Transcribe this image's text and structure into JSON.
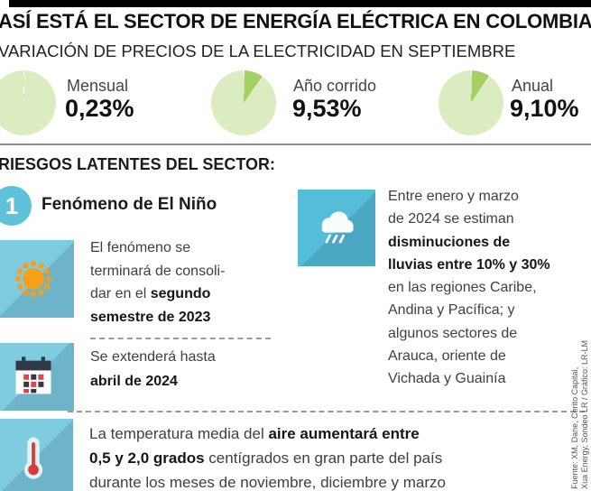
{
  "header": {
    "title": "ASÍ ESTÁ EL SECTOR DE ENERGÍA ELÉCTRICA EN COLOMBIA",
    "subtitle": "VARIACIÓN DE PRECIOS DE LA ELECTRICIDAD EN SEPTIEMBRE"
  },
  "chart_data": {
    "type": "pie",
    "title": "Variación de precios de la electricidad en septiembre",
    "unit": "%",
    "items": [
      {
        "label": "Mensual",
        "value": 0.23,
        "display": "0,23%"
      },
      {
        "label": "Año corrido",
        "value": 9.53,
        "display": "9,53%"
      },
      {
        "label": "Anual",
        "value": 9.1,
        "display": "9,10%"
      }
    ],
    "colors": {
      "slice": "#a7d064",
      "remainder": "#dcecc1"
    }
  },
  "risks": {
    "heading": "RIESGOS LATENTES DEL SECTOR:",
    "number": "1",
    "title": "Fenómeno de El Niño",
    "sun": {
      "lines": [
        {
          "pre": "El fenómeno se",
          "bold": "",
          "post": ""
        },
        {
          "pre": "terminará de consoli-",
          "bold": "",
          "post": ""
        },
        {
          "pre": "dar en el ",
          "bold": "segundo",
          "post": ""
        },
        {
          "pre": "",
          "bold": "semestre de 2023",
          "post": ""
        }
      ]
    },
    "calendar": {
      "lines": [
        {
          "pre": "Se extenderá hasta",
          "bold": "",
          "post": ""
        },
        {
          "pre": "",
          "bold": "abril de 2024",
          "post": ""
        }
      ]
    },
    "rain": {
      "lines": [
        {
          "pre": "Entre enero y marzo",
          "bold": "",
          "post": ""
        },
        {
          "pre": "de 2024 se estiman",
          "bold": "",
          "post": ""
        },
        {
          "pre": "",
          "bold": "disminuciones de",
          "post": ""
        },
        {
          "pre": "",
          "bold": "lluvias entre 10% y 30%",
          "post": ""
        },
        {
          "pre": "en las regiones Caribe,",
          "bold": "",
          "post": ""
        },
        {
          "pre": "Andina y Pacífica; y",
          "bold": "",
          "post": ""
        },
        {
          "pre": "algunos sectores de",
          "bold": "",
          "post": ""
        },
        {
          "pre": "Arauca, oriente de",
          "bold": "",
          "post": ""
        },
        {
          "pre": "Vichada y Guainía",
          "bold": "",
          "post": ""
        }
      ]
    },
    "temperature": {
      "lines": [
        {
          "pre": "La temperatura media del ",
          "bold": "aire aumentará entre",
          "post": ""
        },
        {
          "pre": "",
          "bold": "0,5 y 2,0 grados",
          "post": " centígrados en gran parte del país"
        },
        {
          "pre": "durante los meses de noviembre, diciembre y marzo",
          "bold": "",
          "post": ""
        }
      ]
    }
  },
  "credit": {
    "line1": "Fuente: XM, Dane, Cerito Capital,",
    "line2": "Xua Energy, Sondeo LR / Gráfico: LR-LM"
  },
  "colors": {
    "sky": "#7fcbdf",
    "sky_deep": "#55bdd8",
    "badge": "#5ec2da",
    "sun": "#f4a01c",
    "cal_red": "#e2414d",
    "cal_dark": "#2e3a46",
    "thermo_red": "#d93b3b",
    "dash": "#9a9a9a"
  }
}
